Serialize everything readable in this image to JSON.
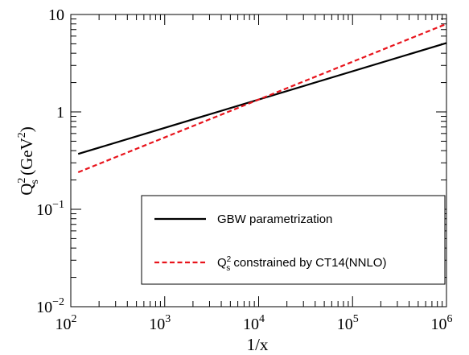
{
  "chart_data": {
    "type": "line",
    "xlabel": "1/x",
    "ylabel": {
      "base": "Q",
      "sup": "2",
      "sub": "s",
      "unit_open": " (GeV",
      "unit_sup": "2",
      "unit_close": ")"
    },
    "xscale": "log",
    "yscale": "log",
    "xlim": [
      100,
      1000000
    ],
    "ylim": [
      0.01,
      10
    ],
    "grid": false,
    "legend_position": "lower-right",
    "x_ticks": [
      {
        "value": 100,
        "base": "10",
        "exp": "2"
      },
      {
        "value": 1000,
        "base": "10",
        "exp": "3"
      },
      {
        "value": 10000,
        "base": "10",
        "exp": "4"
      },
      {
        "value": 100000,
        "base": "10",
        "exp": "5"
      },
      {
        "value": 1000000,
        "base": "10",
        "exp": "6"
      }
    ],
    "y_ticks": [
      {
        "value": 0.01,
        "base": "10",
        "exp": "−2"
      },
      {
        "value": 0.1,
        "base": "10",
        "exp": "−1"
      },
      {
        "value": 1,
        "base": "1",
        "exp": ""
      },
      {
        "value": 10,
        "base": "10",
        "exp": ""
      }
    ],
    "series": [
      {
        "name": "GBW parametrization",
        "color": "#000000",
        "dash": "solid",
        "x": [
          120,
          1000000
        ],
        "y": [
          0.37,
          5.1
        ]
      },
      {
        "name_parts": {
          "base": "Q",
          "sup": "2",
          "sub": "s",
          "rest": " constrained by CT14(NNLO)"
        },
        "color": "#e8141c",
        "dash": "dashed",
        "x": [
          120,
          1000000
        ],
        "y": [
          0.24,
          8.0
        ]
      }
    ]
  }
}
